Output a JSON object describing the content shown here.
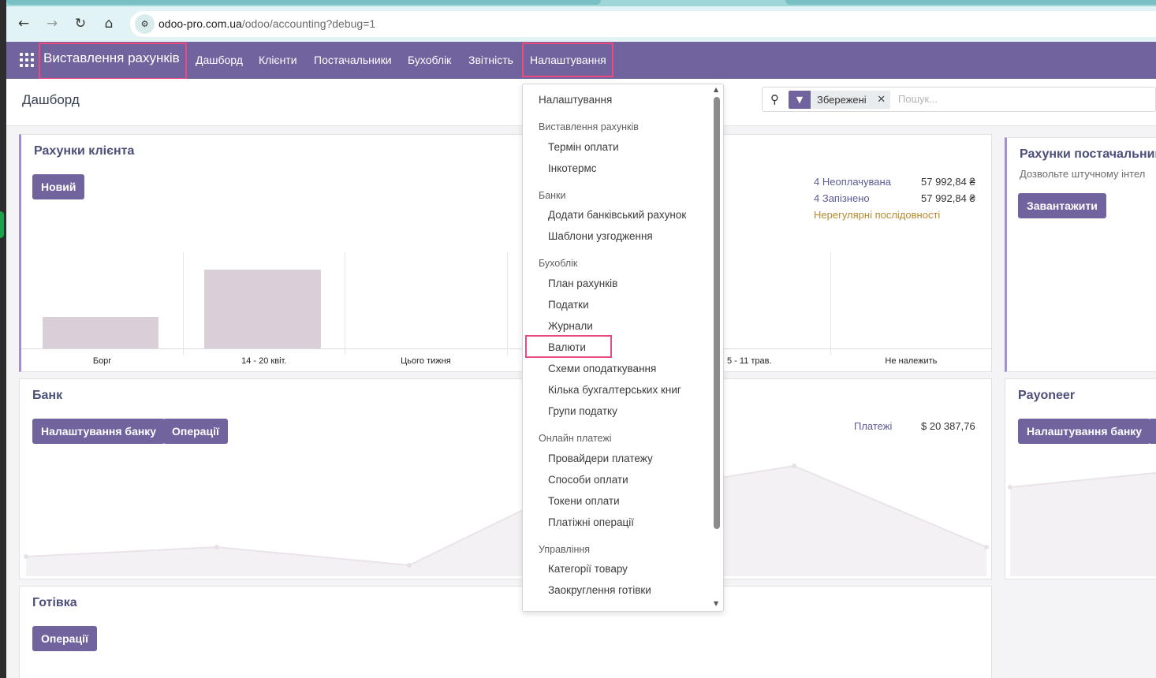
{
  "browser": {
    "url_host": "odoo-pro.com.ua",
    "url_path": "/odoo/accounting?debug=1"
  },
  "navbar": {
    "app_title": "Виставлення рахунків",
    "menu": [
      "Дашборд",
      "Клієнти",
      "Постачальники",
      "Бухоблік",
      "Звітність",
      "Налаштування"
    ]
  },
  "control_panel": {
    "breadcrumb": "Дашборд",
    "facet_label": "Збережені",
    "search_placeholder": "Пошук..."
  },
  "cards": {
    "customer_invoices": {
      "title": "Рахунки клієнта",
      "new_button": "Новий",
      "stats": [
        {
          "label": "4 Неоплачувана",
          "value": "57 992,84 ₴"
        },
        {
          "label": "4 Запізнено",
          "value": "57 992,84 ₴"
        }
      ],
      "warning": "Нерегулярні послідовності"
    },
    "vendor_bills": {
      "title": "Рахунки постачальник",
      "subtitle": "Дозвольте штучному інтел",
      "upload_button": "Завантажити"
    },
    "bank": {
      "title": "Банк",
      "settings_button": "Налаштування банку",
      "operations_button": "Операції",
      "payments_label": "Платежі",
      "payments_value": "$ 20 387,76"
    },
    "payoneer": {
      "title": "Payoneer",
      "settings_button": "Налаштування банку"
    },
    "cash": {
      "title": "Готівка",
      "operations_button": "Операції"
    }
  },
  "chart_data": {
    "type": "bar",
    "categories": [
      "Борг",
      "14 - 20 квіт.",
      "Цього тижня",
      "",
      "5 - 11 трав.",
      "Не належить"
    ],
    "values": [
      40,
      100,
      0,
      0,
      0,
      0
    ]
  },
  "dropdown": {
    "top_item": "Налаштування",
    "sections": [
      {
        "header": "Виставлення рахунків",
        "items": [
          "Термін оплати",
          "Інкотермс"
        ]
      },
      {
        "header": "Банки",
        "items": [
          "Додати банківський рахунок",
          "Шаблони узгодження"
        ]
      },
      {
        "header": "Бухоблік",
        "items": [
          "План рахунків",
          "Податки",
          "Журнали",
          "Валюти",
          "Схеми оподаткування",
          "Кілька бухгалтерських книг",
          "Групи податку"
        ]
      },
      {
        "header": "Онлайн платежі",
        "items": [
          "Провайдери платежу",
          "Способи оплати",
          "Токени оплати",
          "Платіжні операції"
        ]
      },
      {
        "header": "Управління",
        "items": [
          "Категорії товару",
          "Заокруглення готівки"
        ]
      }
    ]
  },
  "colors": {
    "brand": "#71639e",
    "highlight": "#e94b7c"
  }
}
